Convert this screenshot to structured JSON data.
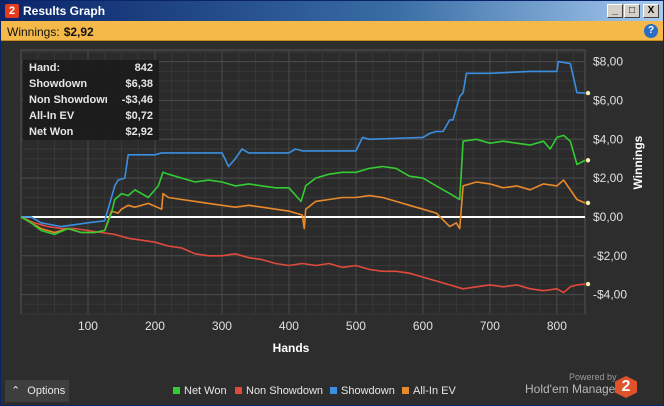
{
  "window": {
    "title": "Results Graph",
    "app_badge": "2",
    "min_label": "_",
    "max_label": "□",
    "close_label": "X"
  },
  "info": {
    "winnings_label": "Winnings:",
    "winnings_value": "$2,92",
    "help_label": "?"
  },
  "stats": [
    {
      "key": "Hand:",
      "value": "842"
    },
    {
      "key": "Showdown",
      "value": "$6,38"
    },
    {
      "key": "Non Showdown",
      "value": "-$3,46"
    },
    {
      "key": "All-In EV",
      "value": "$0,72"
    },
    {
      "key": "Net Won",
      "value": "$2,92"
    }
  ],
  "footer": {
    "options_label": "Options",
    "powered_by": "Powered by",
    "brand": "Hold'em Manager",
    "brand_badge": "2"
  },
  "colors": {
    "net_won": "#33cc33",
    "non_showdown": "#e04a3c",
    "showdown": "#3a8fe0",
    "all_in_ev": "#e98a2a"
  },
  "chart_data": {
    "type": "line",
    "xlabel": "Hands",
    "ylabel": "Winnings",
    "xlim": [
      0,
      842
    ],
    "ylim": [
      -5,
      8.6
    ],
    "x_ticks": [
      100,
      200,
      300,
      400,
      500,
      600,
      700,
      800
    ],
    "x_tick_labels": [
      "100",
      "200",
      "300",
      "400",
      "500",
      "600",
      "700",
      "800"
    ],
    "y_ticks": [
      8,
      6,
      4,
      2,
      0,
      -2,
      -4
    ],
    "y_tick_labels": [
      "$8,00",
      "$6,00",
      "$4,00",
      "$2,00",
      "$0,00",
      "-$2,00",
      "-$4,00"
    ],
    "grid": true,
    "legend_position": "bottom",
    "series": [
      {
        "name": "Net Won",
        "color": "#33cc33",
        "x": [
          0,
          15,
          30,
          50,
          70,
          90,
          100,
          110,
          125,
          135,
          140,
          150,
          160,
          170,
          190,
          205,
          212,
          220,
          240,
          260,
          280,
          300,
          320,
          340,
          360,
          380,
          400,
          418,
          425,
          440,
          460,
          480,
          500,
          520,
          540,
          560,
          580,
          600,
          620,
          640,
          650,
          655,
          660,
          680,
          700,
          720,
          740,
          760,
          780,
          790,
          800,
          810,
          820,
          830,
          842
        ],
        "y": [
          0,
          -0.3,
          -0.7,
          -0.9,
          -0.6,
          -0.8,
          -0.8,
          -0.8,
          -0.7,
          0.2,
          0.9,
          1.2,
          1.1,
          1.4,
          1.0,
          1.6,
          2.3,
          2.2,
          2.0,
          1.8,
          1.9,
          1.8,
          1.6,
          1.7,
          1.6,
          1.5,
          1.5,
          0.8,
          1.6,
          2.0,
          2.2,
          2.3,
          2.3,
          2.5,
          2.6,
          2.5,
          2.1,
          2.0,
          1.6,
          1.2,
          1.0,
          0.9,
          3.9,
          4.0,
          3.8,
          3.9,
          3.8,
          3.7,
          3.9,
          3.5,
          4.1,
          4.2,
          3.9,
          2.7,
          2.92
        ]
      },
      {
        "name": "Non Showdown",
        "color": "#e04a3c",
        "x": [
          0,
          20,
          40,
          60,
          80,
          100,
          120,
          140,
          160,
          180,
          200,
          220,
          240,
          260,
          280,
          300,
          320,
          340,
          360,
          380,
          400,
          420,
          440,
          460,
          480,
          500,
          520,
          540,
          560,
          580,
          600,
          620,
          640,
          660,
          680,
          700,
          720,
          740,
          760,
          780,
          800,
          810,
          820,
          830,
          842
        ],
        "y": [
          0,
          -0.3,
          -0.5,
          -0.6,
          -0.6,
          -0.7,
          -0.8,
          -0.9,
          -1.1,
          -1.2,
          -1.3,
          -1.5,
          -1.6,
          -1.9,
          -2.0,
          -2.0,
          -1.9,
          -2.1,
          -2.2,
          -2.4,
          -2.5,
          -2.4,
          -2.5,
          -2.4,
          -2.6,
          -2.5,
          -2.7,
          -2.8,
          -2.8,
          -2.9,
          -3.1,
          -3.3,
          -3.5,
          -3.7,
          -3.6,
          -3.5,
          -3.6,
          -3.5,
          -3.7,
          -3.8,
          -3.7,
          -3.9,
          -3.6,
          -3.5,
          -3.46
        ]
      },
      {
        "name": "Showdown",
        "color": "#3a8fe0",
        "x": [
          0,
          15,
          30,
          60,
          100,
          125,
          140,
          145,
          155,
          160,
          200,
          210,
          215,
          300,
          310,
          320,
          330,
          340,
          400,
          410,
          420,
          500,
          510,
          520,
          600,
          610,
          620,
          630,
          640,
          645,
          655,
          660,
          665,
          700,
          760,
          800,
          802,
          820,
          830,
          842
        ],
        "y": [
          0,
          0,
          -0.3,
          -0.5,
          -0.3,
          -0.2,
          1.6,
          1.9,
          2.0,
          3.2,
          3.2,
          3.3,
          3.3,
          3.3,
          2.6,
          3.0,
          3.5,
          3.3,
          3.3,
          3.5,
          3.4,
          3.4,
          4.1,
          4.0,
          4.1,
          4.3,
          4.4,
          4.4,
          5.0,
          5.0,
          6.2,
          6.4,
          7.4,
          7.4,
          7.5,
          7.5,
          8.0,
          7.9,
          6.4,
          6.38
        ]
      },
      {
        "name": "All-In EV",
        "color": "#e98a2a",
        "x": [
          0,
          15,
          30,
          50,
          70,
          90,
          100,
          110,
          125,
          135,
          145,
          150,
          160,
          170,
          190,
          210,
          212,
          220,
          240,
          260,
          280,
          300,
          320,
          340,
          360,
          380,
          400,
          420,
          423,
          425,
          440,
          460,
          480,
          500,
          520,
          540,
          560,
          580,
          600,
          620,
          640,
          650,
          655,
          660,
          680,
          700,
          720,
          740,
          760,
          780,
          800,
          810,
          820,
          830,
          842
        ],
        "y": [
          0,
          -0.3,
          -0.6,
          -0.8,
          -0.6,
          -0.8,
          -0.8,
          -0.8,
          -0.7,
          0.3,
          0.2,
          0.4,
          0.6,
          0.5,
          0.7,
          0.4,
          1.2,
          1.0,
          0.9,
          0.8,
          0.7,
          0.6,
          0.5,
          0.6,
          0.5,
          0.4,
          0.3,
          0.1,
          -0.6,
          0.4,
          0.8,
          0.9,
          1.0,
          1.0,
          1.1,
          1.0,
          0.8,
          0.6,
          0.4,
          0.2,
          -0.5,
          -0.3,
          -0.6,
          1.6,
          1.8,
          1.7,
          1.5,
          1.6,
          1.4,
          1.7,
          1.6,
          1.9,
          1.4,
          0.9,
          0.72
        ]
      }
    ]
  }
}
